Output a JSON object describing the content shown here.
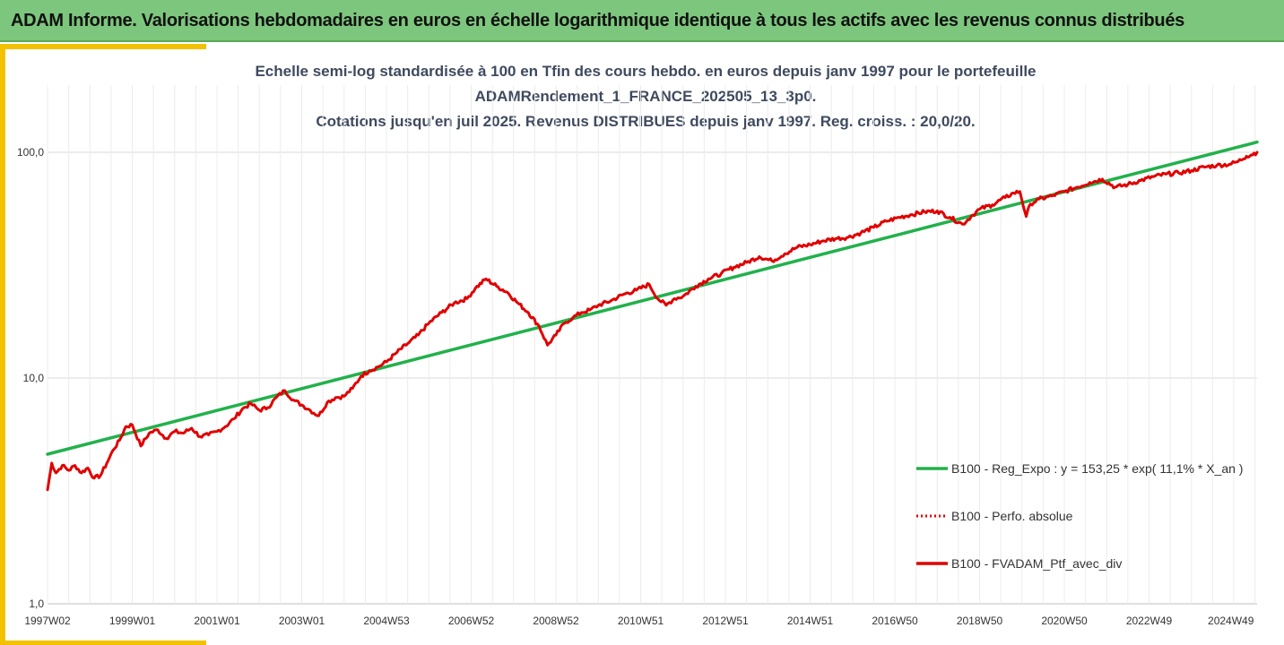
{
  "header": {
    "title": "ADAM Informe. Valorisations hebdomadaires en euros en échelle logarithmique identique à tous les actifs avec les revenus connus distribués"
  },
  "colors": {
    "header_bg": "#7dc67d",
    "accent": "#f2c100",
    "regression": "#22b14c",
    "portfolio": "#e00000",
    "title_text": "#3e4a5e"
  },
  "chart_data": {
    "type": "line",
    "title_lines": [
      "Echelle semi-log standardisée à 100 en Tfin des cours hebdo.  en euros depuis janv 1997 pour le portefeuille",
      "ADAMRendement_1_FRANCE_202505_13_3p0.",
      "Cotations  jusqu'en juil 2025. Revenus DISTRIBUES depuis janv 1997. Reg. croiss. : 20,0/20."
    ],
    "y_scale": "log",
    "ylim": [
      1,
      100
    ],
    "y_ticks": [
      1,
      10,
      100
    ],
    "y_tick_labels": [
      "1,0",
      "10,0",
      "100,0"
    ],
    "x_range": [
      1997.0,
      2025.55
    ],
    "x_ticks": [
      1997.0,
      1999.0,
      2001.0,
      2003.0,
      2005.0,
      2007.0,
      2009.0,
      2011.0,
      2013.0,
      2015.0,
      2017.0,
      2019.0,
      2021.0,
      2023.0,
      2024.93
    ],
    "x_tick_labels": [
      "1997W02",
      "1999W01",
      "2001W01",
      "2003W01",
      "2004W53",
      "2006W52",
      "2008W52",
      "2010W51",
      "2012W51",
      "2014W51",
      "2016W50",
      "2018W50",
      "2020W50",
      "2022W49",
      "2024W49"
    ],
    "grid": true,
    "legend_position": "right",
    "series": [
      {
        "name": "B100 - Reg_Expo : y = 153,25 * exp( 11,1% *  X_an )",
        "color": "#22b14c",
        "style": "solid",
        "x": [
          1997.0,
          2025.55
        ],
        "y": [
          4.6,
          111.0
        ]
      },
      {
        "name": "B100 - Perfo. absolue",
        "color": "#e00000",
        "style": "dotted",
        "x": [],
        "y": []
      },
      {
        "name": "B100 - FVADAM_Ptf_avec_div",
        "color": "#e00000",
        "style": "solid",
        "x": [
          1997.0,
          1997.1,
          1997.2,
          1997.35,
          1997.5,
          1997.65,
          1997.8,
          1997.95,
          1998.1,
          1998.25,
          1998.4,
          1998.55,
          1998.7,
          1998.85,
          1999.0,
          1999.2,
          1999.4,
          1999.6,
          1999.8,
          2000.0,
          2000.2,
          2000.4,
          2000.6,
          2000.8,
          2001.0,
          2001.2,
          2001.4,
          2001.6,
          2001.8,
          2002.0,
          2002.2,
          2002.4,
          2002.6,
          2002.8,
          2003.0,
          2003.2,
          2003.4,
          2003.6,
          2003.8,
          2004.0,
          2004.2,
          2004.4,
          2004.6,
          2004.8,
          2005.0,
          2005.25,
          2005.5,
          2005.75,
          2006.0,
          2006.3,
          2006.6,
          2006.9,
          2007.1,
          2007.35,
          2007.6,
          2007.85,
          2008.1,
          2008.35,
          2008.6,
          2008.8,
          2009.0,
          2009.2,
          2009.4,
          2009.6,
          2009.8,
          2010.0,
          2010.3,
          2010.6,
          2010.9,
          2011.2,
          2011.4,
          2011.6,
          2011.8,
          2012.0,
          2012.3,
          2012.6,
          2012.9,
          2013.2,
          2013.5,
          2013.8,
          2014.1,
          2014.4,
          2014.7,
          2015.0,
          2015.3,
          2015.6,
          2015.9,
          2016.2,
          2016.5,
          2016.8,
          2017.1,
          2017.4,
          2017.7,
          2018.0,
          2018.3,
          2018.6,
          2018.8,
          2019.0,
          2019.3,
          2019.6,
          2019.8,
          2019.95,
          2020.1,
          2020.2,
          2020.4,
          2020.7,
          2021.0,
          2021.3,
          2021.6,
          2021.9,
          2022.2,
          2022.5,
          2022.8,
          2023.1,
          2023.4,
          2023.7,
          2024.0,
          2024.3,
          2024.6,
          2024.9,
          2025.1,
          2025.3,
          2025.55
        ],
        "y": [
          3.2,
          4.2,
          3.8,
          4.1,
          3.9,
          4.1,
          3.8,
          4.0,
          3.6,
          3.7,
          4.2,
          4.8,
          5.3,
          6.1,
          6.2,
          5.0,
          5.7,
          5.9,
          5.4,
          5.8,
          5.7,
          6.0,
          5.5,
          5.6,
          5.8,
          6.1,
          6.6,
          7.3,
          7.7,
          7.2,
          7.4,
          8.2,
          8.8,
          8.0,
          7.6,
          7.2,
          6.8,
          7.8,
          8.2,
          8.3,
          9.0,
          10.2,
          10.8,
          11.2,
          11.8,
          13.0,
          14.2,
          15.5,
          17.5,
          19.5,
          21.5,
          22.5,
          25.0,
          27.5,
          25.5,
          24.0,
          21.5,
          19.5,
          17.0,
          14.0,
          15.5,
          17.5,
          18.5,
          19.5,
          20.0,
          21.0,
          22.0,
          23.5,
          24.5,
          26.0,
          22.5,
          21.0,
          22.5,
          23.0,
          25.5,
          27.5,
          29.0,
          31.0,
          32.5,
          34.5,
          33.0,
          35.5,
          38.0,
          39.0,
          40.5,
          41.5,
          42.0,
          44.0,
          46.5,
          49.5,
          51.5,
          53.0,
          54.5,
          55.0,
          51.5,
          48.0,
          52.0,
          56.0,
          58.5,
          63.0,
          66.0,
          67.0,
          52.0,
          59.0,
          62.0,
          64.0,
          67.0,
          70.0,
          73.5,
          76.0,
          70.0,
          72.0,
          75.0,
          78.0,
          80.0,
          81.0,
          83.0,
          86.0,
          87.5,
          88.5,
          91.0,
          96.0,
          100.0
        ]
      }
    ]
  }
}
